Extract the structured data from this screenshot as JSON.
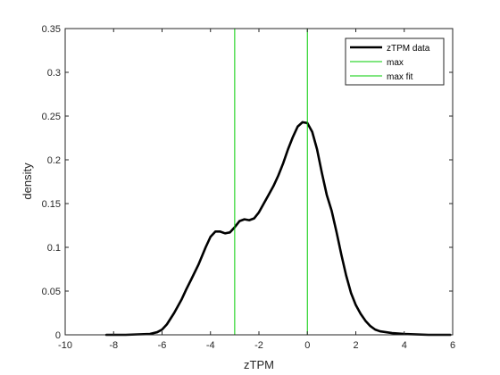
{
  "chart_data": {
    "type": "line",
    "title": "",
    "xlabel": "zTPM",
    "ylabel": "density",
    "xlim": [
      -10,
      6
    ],
    "ylim": [
      0,
      0.35
    ],
    "xticks": [
      -10,
      -8,
      -6,
      -4,
      -2,
      0,
      2,
      4,
      6
    ],
    "yticks": [
      0,
      0.05,
      0.1,
      0.15,
      0.2,
      0.25,
      0.3,
      0.35
    ],
    "xtick_labels": [
      "-10",
      "-8",
      "-6",
      "-4",
      "-2",
      "0",
      "2",
      "4",
      "6"
    ],
    "ytick_labels": [
      "0",
      "0.05",
      "0.1",
      "0.15",
      "0.2",
      "0.25",
      "0.3",
      "0.35"
    ],
    "grid": false,
    "legend_position": "top-right",
    "series": [
      {
        "name": "zTPM data",
        "color": "#000000",
        "line_style": "thick",
        "x": [
          -8.3,
          -7.5,
          -7.0,
          -6.5,
          -6.2,
          -6.0,
          -5.8,
          -5.5,
          -5.2,
          -5.0,
          -4.8,
          -4.5,
          -4.2,
          -4.0,
          -3.8,
          -3.6,
          -3.4,
          -3.2,
          -3.0,
          -2.8,
          -2.6,
          -2.4,
          -2.2,
          -2.0,
          -1.8,
          -1.6,
          -1.4,
          -1.2,
          -1.0,
          -0.8,
          -0.6,
          -0.4,
          -0.2,
          0.0,
          0.2,
          0.4,
          0.6,
          0.8,
          1.0,
          1.2,
          1.4,
          1.6,
          1.8,
          2.0,
          2.2,
          2.4,
          2.6,
          2.8,
          3.0,
          3.5,
          4.0,
          5.0,
          5.9
        ],
        "y": [
          0.0,
          0.0,
          0.0005,
          0.001,
          0.003,
          0.006,
          0.012,
          0.025,
          0.04,
          0.052,
          0.063,
          0.08,
          0.1,
          0.112,
          0.118,
          0.118,
          0.116,
          0.117,
          0.123,
          0.13,
          0.132,
          0.131,
          0.133,
          0.14,
          0.15,
          0.16,
          0.17,
          0.182,
          0.196,
          0.212,
          0.226,
          0.238,
          0.243,
          0.242,
          0.232,
          0.212,
          0.185,
          0.16,
          0.142,
          0.118,
          0.092,
          0.068,
          0.048,
          0.034,
          0.024,
          0.016,
          0.01,
          0.006,
          0.004,
          0.002,
          0.001,
          0.0,
          0.0
        ]
      },
      {
        "name": "max",
        "color": "#00cc00",
        "line_style": "thin",
        "vline_x": -3.0
      },
      {
        "name": "max fit",
        "color": "#00cc00",
        "line_style": "thin",
        "vline_x": 0.0
      }
    ]
  }
}
